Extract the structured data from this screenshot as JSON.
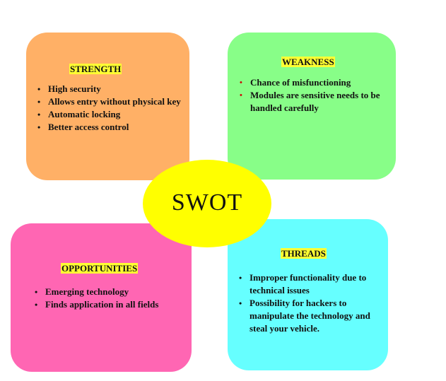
{
  "center": {
    "label": "SWOT"
  },
  "colors": {
    "strength": "#ffb066",
    "weakness": "#88fe88",
    "opportunities": "#ff66b3",
    "threads": "#66ffff",
    "center": "#ffff00",
    "heading_highlight": "#ffff33"
  },
  "strength": {
    "title": "STRENGTH",
    "items": [
      "High security",
      "Allows entry without physical key",
      "Automatic locking",
      "Better access control"
    ]
  },
  "weakness": {
    "title": "WEAKNESS",
    "items": [
      "Chance of  misfunctioning",
      "Modules  are sensitive needs to be handled carefully"
    ]
  },
  "opportunities": {
    "title": "OPPORTUNITIES",
    "items": [
      "Emerging technology",
      "Finds application in all fields"
    ]
  },
  "threads": {
    "title": "THREADS",
    "items": [
      "Improper functionality due to technical issues",
      " Possibility for hackers to manipulate the technology and steal your vehicle."
    ]
  }
}
